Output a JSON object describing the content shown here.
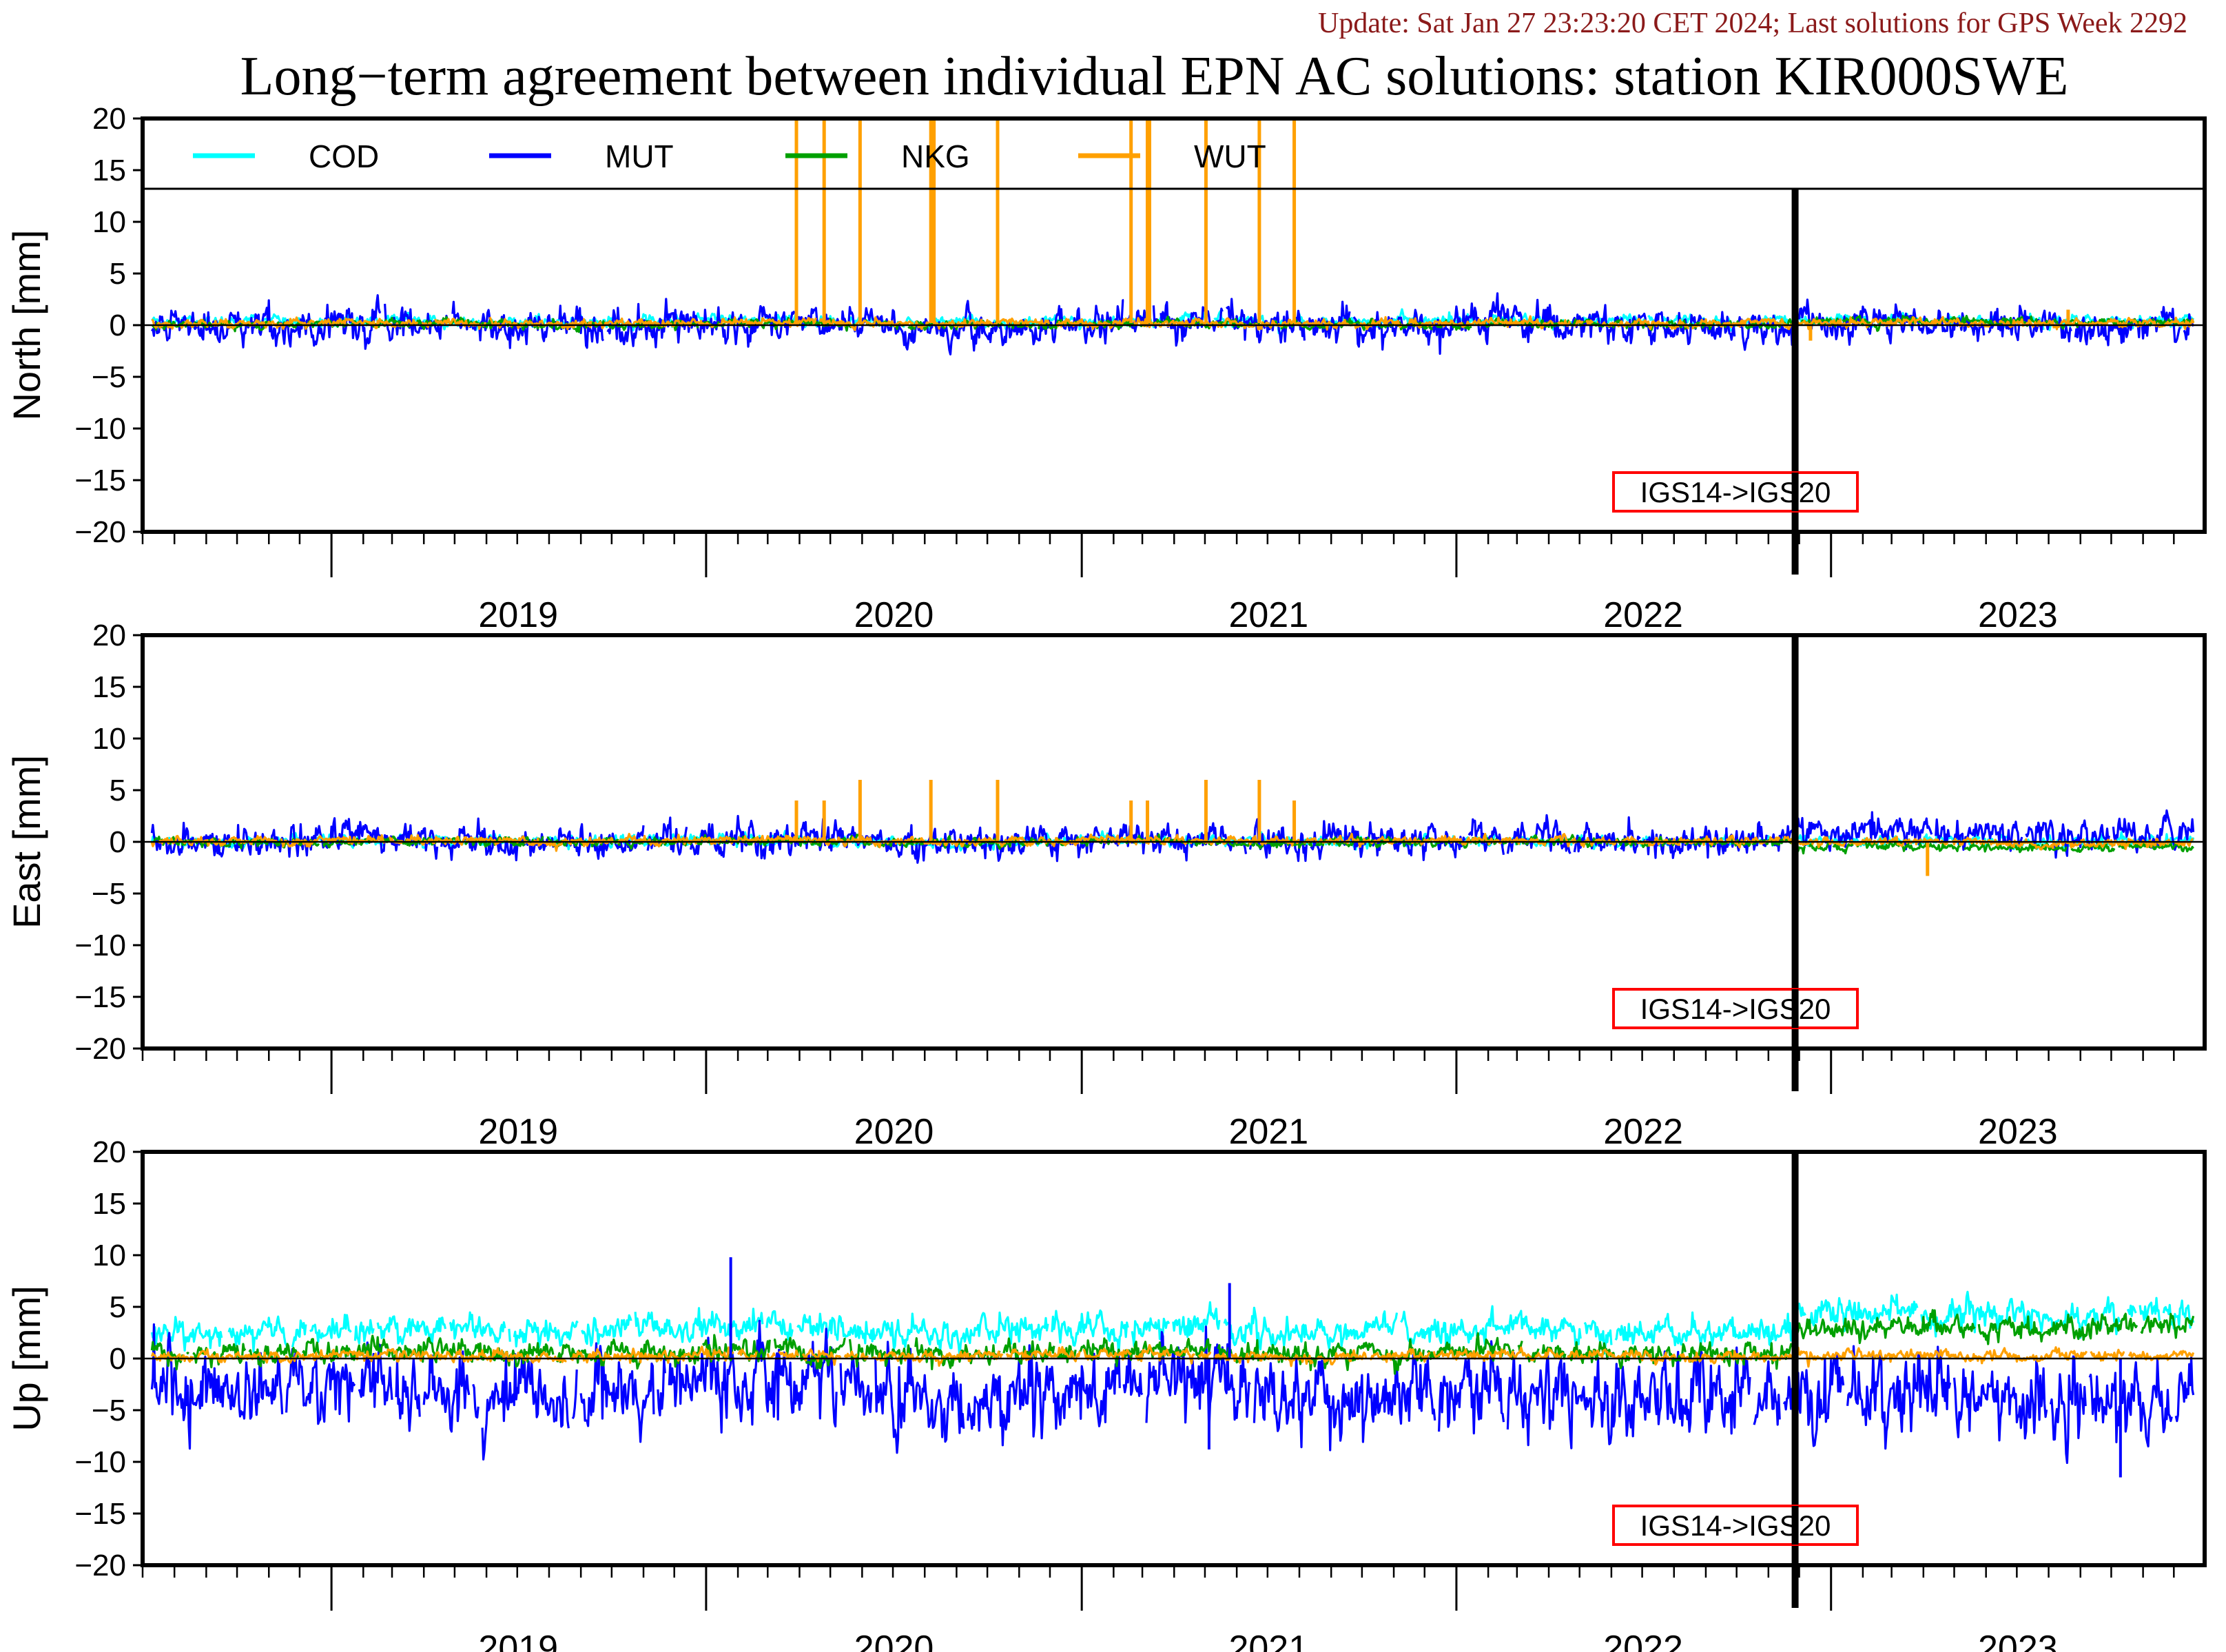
{
  "header": {
    "update_note": "Update: Sat Jan 27 23:23:20 CET 2024; Last solutions for GPS Week 2292",
    "title": "Long−term agreement between individual EPN AC solutions: station KIR000SWE"
  },
  "colors": {
    "COD": "#00ffff",
    "MUT": "#0000ff",
    "NKG": "#00a000",
    "WUT": "#ffa000",
    "marker_box": "#ff0000",
    "frame": "#000000"
  },
  "chart_data": [
    {
      "type": "line",
      "panel": "north",
      "ylabel": "North [mm]",
      "ylim": [
        -20,
        20
      ],
      "yticks": [
        -20,
        -15,
        -10,
        -5,
        0,
        5,
        10,
        15,
        20
      ],
      "ytick_labels": [
        "−20",
        "−15",
        "−10",
        "−5",
        "0",
        "5",
        "10",
        "15",
        "20"
      ],
      "xlim": [
        "2018-07-01",
        "2023-12-31"
      ],
      "xtick_labels": [
        "2019",
        "2020",
        "2021",
        "2022",
        "2023"
      ],
      "grid": false,
      "legend": {
        "placement": "top",
        "entries": [
          "COD",
          "MUT",
          "NKG",
          "WUT"
        ]
      },
      "annotation": {
        "text": "IGS14->IGS20",
        "x": "2022-11-27"
      },
      "series": [
        {
          "name": "COD",
          "mean": 0.4,
          "spread": 0.4,
          "offset_after_change": 0.0,
          "active_until": "2023-12-20"
        },
        {
          "name": "MUT",
          "mean": 0.0,
          "spread": 1.2,
          "offset_after_change": 0.0,
          "active_until": "2023-12-20"
        },
        {
          "name": "NKG",
          "mean": 0.1,
          "spread": 0.3,
          "offset_after_change": 0.2,
          "active_until": "2023-12-20"
        },
        {
          "name": "WUT",
          "mean": 0.2,
          "spread": 0.3,
          "offset_after_change": 0.0,
          "active_until": "2023-12-20",
          "spikes": [
            {
              "x": "2020-03-29",
              "y": 20
            },
            {
              "x": "2020-04-25",
              "y": 20
            },
            {
              "x": "2020-05-30",
              "y": 20
            },
            {
              "x": "2020-08-07",
              "y": 20
            },
            {
              "x": "2020-08-10",
              "y": 20
            },
            {
              "x": "2020-10-11",
              "y": 20
            },
            {
              "x": "2021-02-18",
              "y": 20
            },
            {
              "x": "2021-03-06",
              "y": 20
            },
            {
              "x": "2021-03-08",
              "y": 20
            },
            {
              "x": "2021-05-02",
              "y": 20
            },
            {
              "x": "2021-06-23",
              "y": 20
            },
            {
              "x": "2021-07-27",
              "y": 20
            },
            {
              "x": "2022-12-12",
              "y": -1.5
            },
            {
              "x": "2023-08-20",
              "y": 1.5
            }
          ]
        }
      ]
    },
    {
      "type": "line",
      "panel": "east",
      "ylabel": "East [mm]",
      "ylim": [
        -20,
        20
      ],
      "yticks": [
        -20,
        -15,
        -10,
        -5,
        0,
        5,
        10,
        15,
        20
      ],
      "ytick_labels": [
        "−20",
        "−15",
        "−10",
        "−5",
        "0",
        "5",
        "10",
        "15",
        "20"
      ],
      "xlim": [
        "2018-07-01",
        "2023-12-31"
      ],
      "xtick_labels": [
        "2019",
        "2020",
        "2021",
        "2022",
        "2023"
      ],
      "grid": false,
      "annotation": {
        "text": "IGS14->IGS20",
        "x": "2022-11-27"
      },
      "series": [
        {
          "name": "COD",
          "mean": 0.1,
          "spread": 0.4,
          "offset_after_change": 0.0,
          "active_until": "2023-12-20"
        },
        {
          "name": "MUT",
          "mean": 0.2,
          "spread": 1.1,
          "offset_after_change": 0.5,
          "active_until": "2023-12-20"
        },
        {
          "name": "NKG",
          "mean": 0.0,
          "spread": 0.3,
          "offset_after_change": -0.5,
          "active_until": "2023-12-20"
        },
        {
          "name": "WUT",
          "mean": 0.1,
          "spread": 0.3,
          "offset_after_change": -0.2,
          "active_until": "2023-12-20",
          "spikes": [
            {
              "x": "2020-03-29",
              "y": 4
            },
            {
              "x": "2020-04-25",
              "y": 4
            },
            {
              "x": "2020-05-30",
              "y": 6
            },
            {
              "x": "2020-08-07",
              "y": 6
            },
            {
              "x": "2020-10-11",
              "y": 6
            },
            {
              "x": "2021-02-18",
              "y": 4
            },
            {
              "x": "2021-03-06",
              "y": 4
            },
            {
              "x": "2021-05-02",
              "y": 6
            },
            {
              "x": "2021-06-23",
              "y": 6
            },
            {
              "x": "2021-07-27",
              "y": 4
            },
            {
              "x": "2023-04-05",
              "y": -3.3
            }
          ]
        }
      ]
    },
    {
      "type": "line",
      "panel": "up",
      "ylabel": "Up [mm]",
      "ylim": [
        -20,
        20
      ],
      "yticks": [
        -20,
        -15,
        -10,
        -5,
        0,
        5,
        10,
        15,
        20
      ],
      "ytick_labels": [
        "−20",
        "−15",
        "−10",
        "−5",
        "0",
        "5",
        "10",
        "15",
        "20"
      ],
      "xlim": [
        "2018-07-01",
        "2023-12-31"
      ],
      "xtick_labels": [
        "2019",
        "2020",
        "2021",
        "2022",
        "2023"
      ],
      "grid": false,
      "annotation": {
        "text": "IGS14->IGS20",
        "x": "2022-11-27"
      },
      "series": [
        {
          "name": "COD",
          "mean": 2.8,
          "spread": 1.0,
          "offset_after_change": 1.5,
          "active_until": "2023-12-20"
        },
        {
          "name": "MUT",
          "mean": -3.0,
          "spread": 2.8,
          "offset_after_change": -1.0,
          "active_until": "2023-12-20"
        },
        {
          "name": "NKG",
          "mean": 0.6,
          "spread": 0.8,
          "offset_after_change": 2.4,
          "active_until": "2023-12-20"
        },
        {
          "name": "WUT",
          "mean": 0.3,
          "spread": 0.4,
          "offset_after_change": 0.0,
          "active_until": "2023-12-20"
        }
      ],
      "extremes": [
        {
          "series": "MUT",
          "x": "2020-01-25",
          "y": 9.8
        },
        {
          "series": "MUT",
          "x": "2021-05-25",
          "y": 7.3
        },
        {
          "series": "MUT",
          "x": "2023-10-10",
          "y": -11.5
        },
        {
          "series": "MUT",
          "x": "2021-05-05",
          "y": -8.8
        }
      ]
    }
  ]
}
